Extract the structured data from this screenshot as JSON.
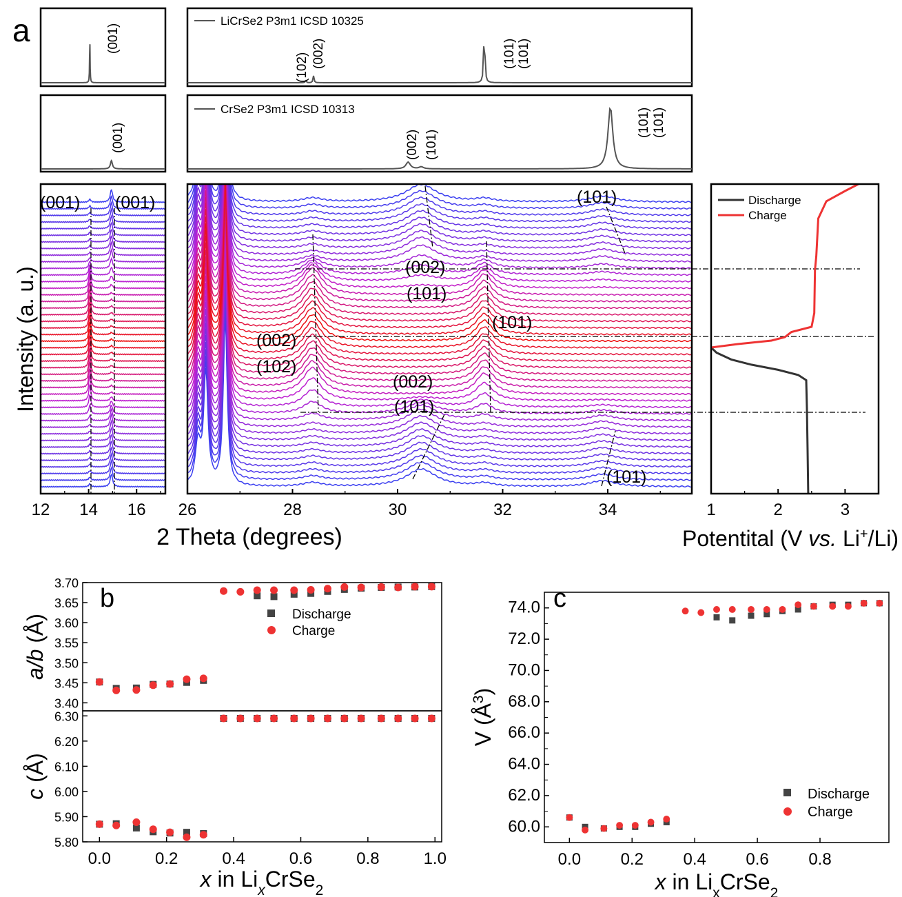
{
  "panel_labels": {
    "a": "a",
    "b": "b",
    "c": "c"
  },
  "colors": {
    "discharge": "#333333",
    "charge": "#ee3333",
    "ref": "#555555",
    "scan_start": "#3b3ff0",
    "scan_mid": "#c020d0",
    "scan_end": "#ee1010"
  },
  "chart_data": [
    {
      "id": "a-ref-licrse2",
      "type": "line",
      "legend": "LiCrSe2 P3m1 ICSD 10325",
      "peaks": [
        {
          "x": 14.05,
          "label": "(001)"
        },
        {
          "x": 28.25,
          "label": "(102)"
        },
        {
          "x": 28.4,
          "label": "(002)"
        },
        {
          "x": 31.65,
          "label": "(101)"
        },
        {
          "x": 31.65,
          "label": "(101)"
        }
      ]
    },
    {
      "id": "a-ref-crse2",
      "type": "line",
      "legend": "CrSe2 P3m1 ICSD 10313",
      "peaks": [
        {
          "x": 14.95,
          "label": "(001)"
        },
        {
          "x": 30.2,
          "label": "(002)"
        },
        {
          "x": 30.45,
          "label": "(101)"
        },
        {
          "x": 34.05,
          "label": "(101)"
        },
        {
          "x": 34.05,
          "label": "(101)"
        }
      ]
    },
    {
      "id": "a-operando-xrd",
      "type": "line",
      "xlabel": "2 Theta (degrees)",
      "ylabel": "Intensity (a. u.)",
      "xlim_left": [
        12,
        17.2
      ],
      "xticks_left": [
        "12",
        "14",
        "16"
      ],
      "xlim_right": [
        26,
        35.6
      ],
      "xticks_right": [
        "26",
        "28",
        "30",
        "32",
        "34"
      ],
      "annotations": [
        "(001)",
        "(001)",
        "(101)",
        "(002)",
        "(101)",
        "(101)",
        "(002)",
        "(102)",
        "(002)",
        "(101)",
        "(101)"
      ],
      "scan_count": 44
    },
    {
      "id": "a-potential",
      "type": "line",
      "xlabel": "Potentital (V vs. Li+/Li)",
      "xlim": [
        1,
        3.5
      ],
      "xticks": [
        "1",
        "2",
        "3"
      ],
      "legend": [
        "Discharge",
        "Charge"
      ],
      "series": [
        {
          "name": "Discharge",
          "points": [
            [
              2.45,
              0.0
            ],
            [
              2.44,
              0.25
            ],
            [
              2.43,
              0.5
            ],
            [
              2.42,
              0.66
            ],
            [
              2.3,
              0.69
            ],
            [
              2.0,
              0.72
            ],
            [
              1.6,
              0.75
            ],
            [
              1.3,
              0.78
            ],
            [
              1.08,
              0.82
            ],
            [
              1.0,
              0.85
            ]
          ]
        },
        {
          "name": "Charge",
          "points": [
            [
              1.0,
              0.85
            ],
            [
              1.4,
              0.87
            ],
            [
              1.9,
              0.89
            ],
            [
              2.1,
              0.91
            ],
            [
              2.2,
              0.94
            ],
            [
              2.5,
              0.97
            ],
            [
              2.54,
              1.05
            ],
            [
              2.55,
              1.3
            ],
            [
              2.57,
              1.38
            ],
            [
              2.6,
              1.6
            ],
            [
              2.72,
              1.7
            ],
            [
              3.0,
              1.76
            ],
            [
              3.2,
              1.8
            ]
          ]
        }
      ]
    },
    {
      "id": "b-top",
      "type": "scatter",
      "ylabel": "a/b (Å)",
      "ylim": [
        3.38,
        3.7
      ],
      "yticks": [
        "3.40",
        "3.45",
        "3.50",
        "3.55",
        "3.60",
        "3.65",
        "3.70"
      ],
      "legend": [
        "Discharge",
        "Charge"
      ],
      "series": [
        {
          "name": "Discharge",
          "points": [
            [
              0.0,
              3.452
            ],
            [
              0.05,
              3.436
            ],
            [
              0.11,
              3.437
            ],
            [
              0.16,
              3.446
            ],
            [
              0.21,
              3.447
            ],
            [
              0.26,
              3.451
            ],
            [
              0.31,
              3.456
            ],
            [
              0.47,
              3.667
            ],
            [
              0.52,
              3.665
            ],
            [
              0.58,
              3.671
            ],
            [
              0.63,
              3.673
            ],
            [
              0.68,
              3.678
            ],
            [
              0.73,
              3.683
            ],
            [
              0.78,
              3.686
            ],
            [
              0.84,
              3.688
            ],
            [
              0.89,
              3.689
            ],
            [
              0.94,
              3.689
            ],
            [
              0.99,
              3.69
            ]
          ]
        },
        {
          "name": "Charge",
          "points": [
            [
              0.0,
              3.452
            ],
            [
              0.05,
              3.431
            ],
            [
              0.11,
              3.432
            ],
            [
              0.16,
              3.444
            ],
            [
              0.21,
              3.447
            ],
            [
              0.26,
              3.459
            ],
            [
              0.31,
              3.461
            ],
            [
              0.37,
              3.679
            ],
            [
              0.42,
              3.677
            ],
            [
              0.47,
              3.681
            ],
            [
              0.52,
              3.681
            ],
            [
              0.58,
              3.681
            ],
            [
              0.63,
              3.682
            ],
            [
              0.68,
              3.685
            ],
            [
              0.73,
              3.689
            ],
            [
              0.78,
              3.688
            ],
            [
              0.84,
              3.689
            ],
            [
              0.89,
              3.688
            ],
            [
              0.94,
              3.69
            ],
            [
              0.99,
              3.69
            ]
          ]
        }
      ]
    },
    {
      "id": "b-bottom",
      "type": "scatter",
      "xlabel": "x in LixCrSe2",
      "ylabel": "c (Å)",
      "xlim": [
        -0.05,
        1.02
      ],
      "xticks": [
        "0.0",
        "0.2",
        "0.4",
        "0.6",
        "0.8",
        "1.0"
      ],
      "ylim": [
        5.8,
        6.32
      ],
      "yticks": [
        "5.80",
        "5.90",
        "6.00",
        "6.10",
        "6.20",
        "6.30"
      ],
      "series": [
        {
          "name": "Discharge",
          "points": [
            [
              0.0,
              5.87
            ],
            [
              0.05,
              5.872
            ],
            [
              0.11,
              5.855
            ],
            [
              0.16,
              5.84
            ],
            [
              0.21,
              5.835
            ],
            [
              0.26,
              5.838
            ],
            [
              0.31,
              5.833
            ],
            [
              0.37,
              6.29
            ],
            [
              0.42,
              6.29
            ],
            [
              0.47,
              6.29
            ],
            [
              0.52,
              6.29
            ],
            [
              0.58,
              6.29
            ],
            [
              0.63,
              6.29
            ],
            [
              0.68,
              6.29
            ],
            [
              0.73,
              6.29
            ],
            [
              0.78,
              6.29
            ],
            [
              0.84,
              6.29
            ],
            [
              0.89,
              6.29
            ],
            [
              0.94,
              6.29
            ],
            [
              0.99,
              6.29
            ]
          ]
        },
        {
          "name": "Charge",
          "points": [
            [
              0.0,
              5.87
            ],
            [
              0.05,
              5.865
            ],
            [
              0.11,
              5.878
            ],
            [
              0.16,
              5.85
            ],
            [
              0.21,
              5.838
            ],
            [
              0.26,
              5.818
            ],
            [
              0.31,
              5.828
            ],
            [
              0.37,
              6.29
            ],
            [
              0.42,
              6.29
            ],
            [
              0.47,
              6.29
            ],
            [
              0.52,
              6.29
            ],
            [
              0.58,
              6.29
            ],
            [
              0.63,
              6.29
            ],
            [
              0.68,
              6.29
            ],
            [
              0.73,
              6.29
            ],
            [
              0.78,
              6.29
            ],
            [
              0.84,
              6.29
            ],
            [
              0.89,
              6.29
            ],
            [
              0.94,
              6.29
            ],
            [
              0.99,
              6.29
            ]
          ]
        }
      ]
    },
    {
      "id": "c",
      "type": "scatter",
      "xlabel": "x in LixCrSe2",
      "ylabel": "V (Å3)",
      "xlim": [
        -0.08,
        1.02
      ],
      "xticks": [
        "0.0",
        "0.2",
        "0.4",
        "0.6",
        "0.8"
      ],
      "ylim": [
        59.0,
        75.0
      ],
      "yticks": [
        "60.0",
        "62.0",
        "64.0",
        "66.0",
        "68.0",
        "70.0",
        "72.0",
        "74.0"
      ],
      "legend": [
        "Discharge",
        "Charge"
      ],
      "series": [
        {
          "name": "Discharge",
          "points": [
            [
              0.0,
              60.6
            ],
            [
              0.05,
              60.0
            ],
            [
              0.11,
              59.9
            ],
            [
              0.16,
              60.0
            ],
            [
              0.21,
              60.0
            ],
            [
              0.26,
              60.2
            ],
            [
              0.31,
              60.3
            ],
            [
              0.47,
              73.4
            ],
            [
              0.52,
              73.2
            ],
            [
              0.58,
              73.5
            ],
            [
              0.63,
              73.6
            ],
            [
              0.68,
              73.8
            ],
            [
              0.73,
              73.9
            ],
            [
              0.78,
              74.1
            ],
            [
              0.84,
              74.2
            ],
            [
              0.89,
              74.2
            ],
            [
              0.94,
              74.3
            ],
            [
              0.99,
              74.3
            ]
          ]
        },
        {
          "name": "Charge",
          "points": [
            [
              0.0,
              60.6
            ],
            [
              0.05,
              59.8
            ],
            [
              0.11,
              59.9
            ],
            [
              0.16,
              60.1
            ],
            [
              0.21,
              60.1
            ],
            [
              0.26,
              60.3
            ],
            [
              0.31,
              60.5
            ],
            [
              0.37,
              73.8
            ],
            [
              0.42,
              73.7
            ],
            [
              0.47,
              73.9
            ],
            [
              0.52,
              73.9
            ],
            [
              0.58,
              73.9
            ],
            [
              0.63,
              73.9
            ],
            [
              0.68,
              73.9
            ],
            [
              0.73,
              74.2
            ],
            [
              0.78,
              74.1
            ],
            [
              0.84,
              74.1
            ],
            [
              0.89,
              74.1
            ],
            [
              0.94,
              74.3
            ],
            [
              0.99,
              74.3
            ]
          ]
        }
      ]
    }
  ]
}
